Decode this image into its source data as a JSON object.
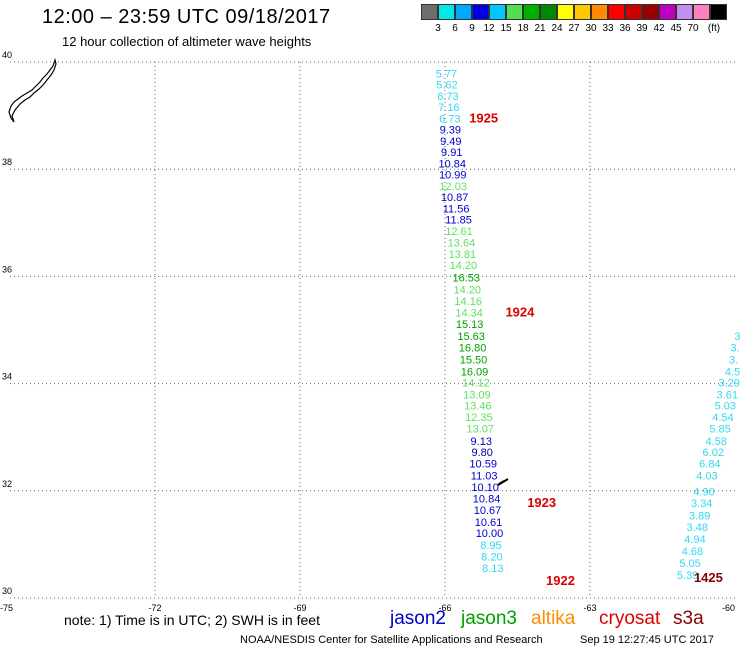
{
  "header": {
    "title": "12:00 – 23:59 UTC 09/18/2017",
    "subtitle": "12 hour collection of altimeter wave heights"
  },
  "legend": {
    "colors": [
      "#6e6e6e",
      "#00e8e8",
      "#00a8ff",
      "#0000e8",
      "#00c8ff",
      "#50e050",
      "#00b000",
      "#008800",
      "#ffff00",
      "#ffc800",
      "#ff8c00",
      "#ff0000",
      "#cc0000",
      "#990000",
      "#c000c0",
      "#c090f0",
      "#ff80c0",
      "#000000"
    ],
    "labels": [
      "3",
      "6",
      "9",
      "12",
      "15",
      "18",
      "21",
      "24",
      "27",
      "30",
      "33",
      "36",
      "39",
      "42",
      "45",
      "70",
      "(ft)"
    ]
  },
  "map": {
    "lat_labels": [
      "40",
      "38",
      "36",
      "34",
      "32",
      "30"
    ],
    "lon_labels": [
      "-75",
      "-72",
      "-69",
      "-66",
      "-63",
      "-60"
    ],
    "lat_lines": [
      40,
      38,
      36,
      34,
      32,
      30
    ],
    "lon_lines": [
      -72,
      -69,
      -66,
      -63
    ],
    "extent": {
      "lon_min": -75,
      "lon_max": -60,
      "lat_min": 30,
      "lat_max": 40
    }
  },
  "tracks": {
    "colors": {
      "c1": "#30d8f0",
      "c2": "#0000d0",
      "c3": "#60e060",
      "c4": "#00a000",
      "c5": "#0000a0"
    },
    "main": [
      {
        "v": "5.77",
        "c": "c1",
        "lon": -65.97,
        "lat": 39.79
      },
      {
        "v": "5.62",
        "c": "c1",
        "lon": -65.96,
        "lat": 39.58
      },
      {
        "v": "6.73",
        "c": "c1",
        "lon": -65.94,
        "lat": 39.37
      },
      {
        "v": "7.16",
        "c": "c1",
        "lon": -65.92,
        "lat": 39.16
      },
      {
        "v": "6.73",
        "c": "c1",
        "lon": -65.9,
        "lat": 38.95
      },
      {
        "v": "9.39",
        "c": "c2",
        "lon": -65.89,
        "lat": 38.74
      },
      {
        "v": "9.49",
        "c": "c2",
        "lon": -65.88,
        "lat": 38.53
      },
      {
        "v": "9.91",
        "c": "c2",
        "lon": -65.86,
        "lat": 38.32
      },
      {
        "v": "10.84",
        "c": "c2",
        "lon": -65.85,
        "lat": 38.11
      },
      {
        "v": "10.99",
        "c": "c2",
        "lon": -65.84,
        "lat": 37.9
      },
      {
        "v": "12.03",
        "c": "c3",
        "lon": -65.83,
        "lat": 37.69
      },
      {
        "v": "10.87",
        "c": "c2",
        "lon": -65.8,
        "lat": 37.48
      },
      {
        "v": "11.56",
        "c": "c2",
        "lon": -65.77,
        "lat": 37.27
      },
      {
        "v": "11.85",
        "c": "c2",
        "lon": -65.72,
        "lat": 37.06
      },
      {
        "v": "12.61",
        "c": "c3",
        "lon": -65.71,
        "lat": 36.85
      },
      {
        "v": "13.64",
        "c": "c3",
        "lon": -65.66,
        "lat": 36.63
      },
      {
        "v": "13.81",
        "c": "c3",
        "lon": -65.64,
        "lat": 36.42
      },
      {
        "v": "14.20",
        "c": "c3",
        "lon": -65.62,
        "lat": 36.21
      },
      {
        "v": "16.53",
        "c": "c4",
        "lon": -65.56,
        "lat": 35.98
      },
      {
        "v": "14.20",
        "c": "c3",
        "lon": -65.54,
        "lat": 35.76
      },
      {
        "v": "14.16",
        "c": "c3",
        "lon": -65.52,
        "lat": 35.54
      },
      {
        "v": "14.34",
        "c": "c3",
        "lon": -65.5,
        "lat": 35.33
      },
      {
        "v": "15.13",
        "c": "c4",
        "lon": -65.49,
        "lat": 35.11
      },
      {
        "v": "15.63",
        "c": "c4",
        "lon": -65.46,
        "lat": 34.89
      },
      {
        "v": "16.80",
        "c": "c4",
        "lon": -65.43,
        "lat": 34.67
      },
      {
        "v": "15.50",
        "c": "c4",
        "lon": -65.41,
        "lat": 34.45
      },
      {
        "v": "16.09",
        "c": "c4",
        "lon": -65.39,
        "lat": 34.23
      },
      {
        "v": "14.12",
        "c": "c3",
        "lon": -65.36,
        "lat": 34.02
      },
      {
        "v": "13.09",
        "c": "c3",
        "lon": -65.34,
        "lat": 33.8
      },
      {
        "v": "13.46",
        "c": "c3",
        "lon": -65.32,
        "lat": 33.59
      },
      {
        "v": "12.35",
        "c": "c3",
        "lon": -65.3,
        "lat": 33.38
      },
      {
        "v": "13.07",
        "c": "c3",
        "lon": -65.27,
        "lat": 33.16
      },
      {
        "v": "9.13",
        "c": "c2",
        "lon": -65.25,
        "lat": 32.93
      },
      {
        "v": "9.80",
        "c": "c5",
        "lon": -65.23,
        "lat": 32.72
      },
      {
        "v": "10.59",
        "c": "c2",
        "lon": -65.21,
        "lat": 32.51
      },
      {
        "v": "11.03",
        "c": "c2",
        "lon": -65.19,
        "lat": 32.29
      },
      {
        "v": "10.10",
        "c": "c2",
        "lon": -65.17,
        "lat": 32.07
      },
      {
        "v": "10.84",
        "c": "c2",
        "lon": -65.14,
        "lat": 31.86
      },
      {
        "v": "10.67",
        "c": "c2",
        "lon": -65.12,
        "lat": 31.64
      },
      {
        "v": "10.61",
        "c": "c2",
        "lon": -65.1,
        "lat": 31.42
      },
      {
        "v": "10.00",
        "c": "c2",
        "lon": -65.08,
        "lat": 31.21
      },
      {
        "v": "8.95",
        "c": "c1",
        "lon": -65.05,
        "lat": 30.99
      },
      {
        "v": "8.20",
        "c": "c1",
        "lon": -65.03,
        "lat": 30.77
      },
      {
        "v": "8.13",
        "c": "c1",
        "lon": -65.01,
        "lat": 30.56
      }
    ],
    "right": [
      {
        "v": "3",
        "c": "c1",
        "lon": -59.95,
        "lat": 34.89
      },
      {
        "v": "3.",
        "c": "c1",
        "lon": -60.0,
        "lat": 34.67
      },
      {
        "v": "3.",
        "c": "c1",
        "lon": -60.03,
        "lat": 34.45
      },
      {
        "v": "4.5",
        "c": "c1",
        "lon": -60.05,
        "lat": 34.23
      },
      {
        "v": "3.29",
        "c": "c1",
        "lon": -60.12,
        "lat": 34.02
      },
      {
        "v": "3.61",
        "c": "c1",
        "lon": -60.16,
        "lat": 33.8
      },
      {
        "v": "5.03",
        "c": "c1",
        "lon": -60.2,
        "lat": 33.59
      },
      {
        "v": "4.54",
        "c": "c1",
        "lon": -60.25,
        "lat": 33.38
      },
      {
        "v": "5.85",
        "c": "c1",
        "lon": -60.31,
        "lat": 33.16
      },
      {
        "v": "4.58",
        "c": "c1",
        "lon": -60.39,
        "lat": 32.93
      },
      {
        "v": "6.02",
        "c": "c1",
        "lon": -60.45,
        "lat": 32.72
      },
      {
        "v": "6.84",
        "c": "c1",
        "lon": -60.52,
        "lat": 32.51
      },
      {
        "v": "4.03",
        "c": "c1",
        "lon": -60.58,
        "lat": 32.29
      },
      {
        "v": "4.90",
        "c": "c1",
        "lon": -60.64,
        "lat": 31.99
      },
      {
        "v": "3.34",
        "c": "c1",
        "lon": -60.69,
        "lat": 31.77
      },
      {
        "v": "3.89",
        "c": "c1",
        "lon": -60.73,
        "lat": 31.54
      },
      {
        "v": "3.48",
        "c": "c1",
        "lon": -60.78,
        "lat": 31.32
      },
      {
        "v": "4.94",
        "c": "c1",
        "lon": -60.83,
        "lat": 31.1
      },
      {
        "v": "4.68",
        "c": "c1",
        "lon": -60.88,
        "lat": 30.88
      },
      {
        "v": "5.05",
        "c": "c1",
        "lon": -60.93,
        "lat": 30.65
      },
      {
        "v": "5.39",
        "c": "c1",
        "lon": -60.98,
        "lat": 30.43
      }
    ],
    "time_labels": [
      {
        "t": "1925",
        "color": "#dd0000",
        "lon": -65.2,
        "lat": 38.95
      },
      {
        "t": "1924",
        "color": "#dd0000",
        "lon": -64.45,
        "lat": 35.33
      },
      {
        "t": "1923",
        "color": "#dd0000",
        "lon": -64.0,
        "lat": 31.77
      },
      {
        "t": "1922",
        "color": "#dd0000",
        "lon": -63.61,
        "lat": 30.32
      },
      {
        "t": "1425",
        "color": "#8b0000",
        "lon": -60.55,
        "lat": 30.37
      }
    ]
  },
  "footer": {
    "note": "note:  1) Time is in UTC;  2) SWH is in feet",
    "satellites": [
      {
        "name": "jason2",
        "color": "#0000cc"
      },
      {
        "name": "jason3",
        "color": "#00a000"
      },
      {
        "name": "altika",
        "color": "#ff8c00"
      },
      {
        "name": "cryosat",
        "color": "#dd0000"
      },
      {
        "name": "s3a",
        "color": "#8b0000"
      }
    ],
    "credit": "NOAA/NESDIS Center for Satellite Applications and Research",
    "timestamp": "Sep 19 12:27:45 UTC 2017"
  }
}
